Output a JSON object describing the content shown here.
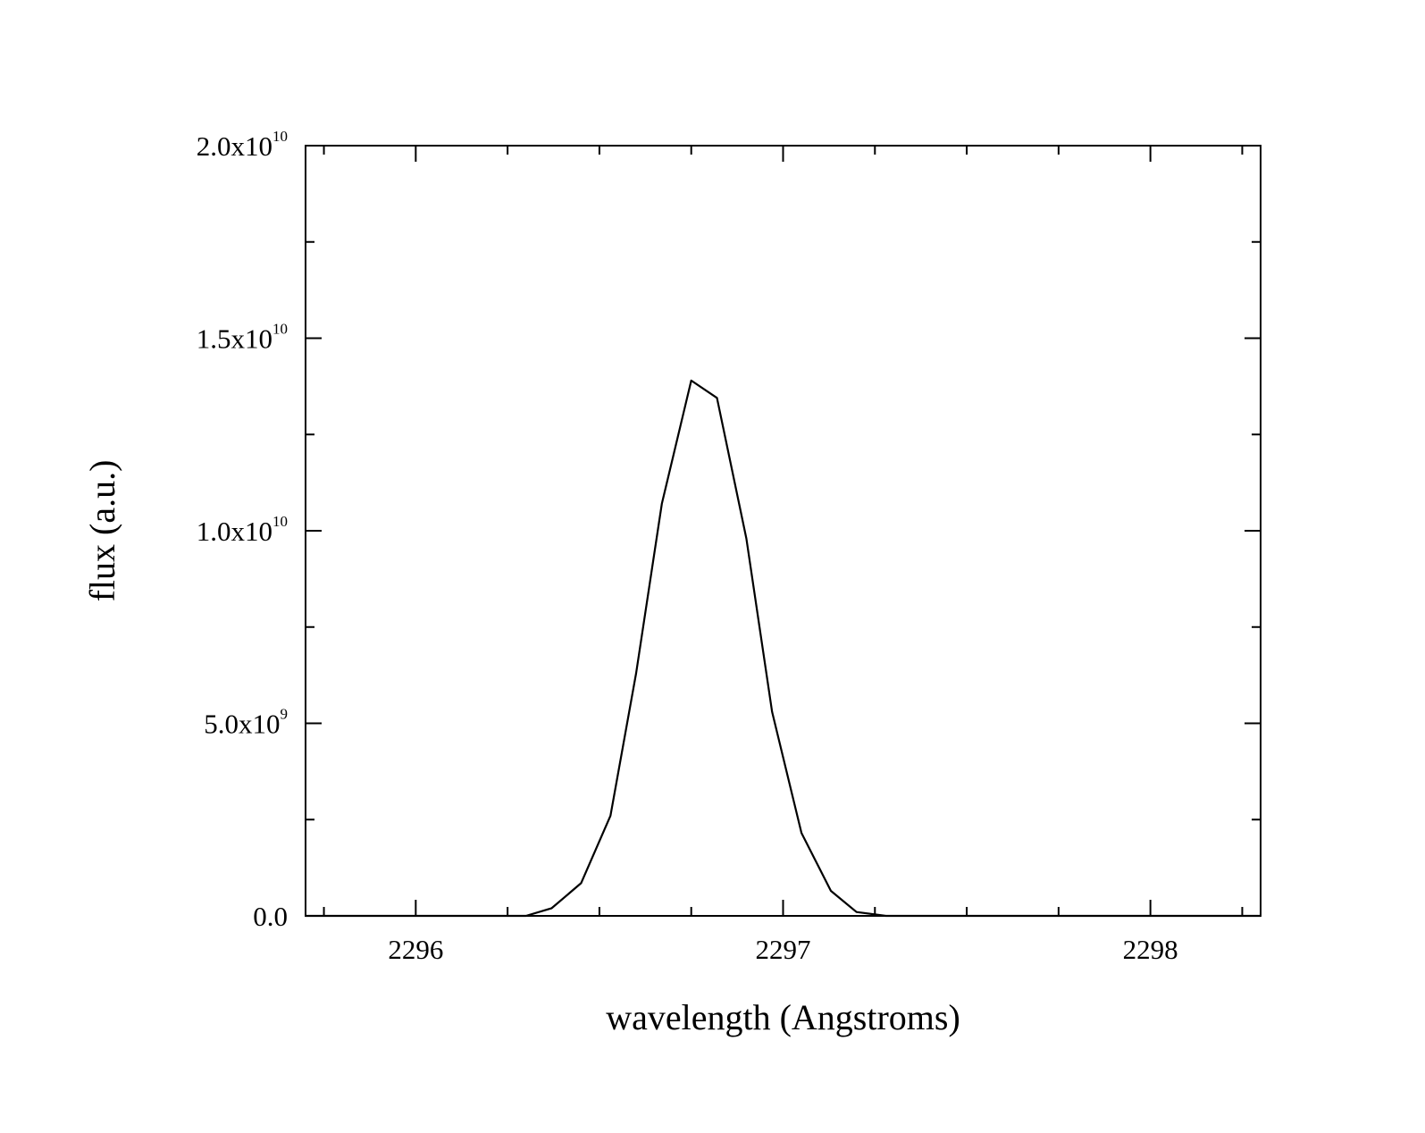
{
  "chart_data": {
    "type": "line",
    "xlabel": "wavelength (Angstroms)",
    "ylabel": "flux (a.u.)",
    "xlim": [
      2295.7,
      2298.3
    ],
    "ylim": [
      0,
      20000000000
    ],
    "grid": false,
    "legend": "none",
    "line_color": "#000000",
    "x_ticks": [
      {
        "value": 2296,
        "label": "2296"
      },
      {
        "value": 2297,
        "label": "2297"
      },
      {
        "value": 2298,
        "label": "2298"
      }
    ],
    "y_ticks": [
      {
        "value": 0,
        "mantissa": "0.0",
        "exp": ""
      },
      {
        "value": 5000000000,
        "mantissa": "5.0x10",
        "exp": "9"
      },
      {
        "value": 10000000000,
        "mantissa": "1.0x10",
        "exp": "10"
      },
      {
        "value": 15000000000,
        "mantissa": "1.5x10",
        "exp": "10"
      },
      {
        "value": 20000000000,
        "mantissa": "2.0x10",
        "exp": "10"
      }
    ],
    "series": [
      {
        "x": [
          2295.7,
          2296.3,
          2296.37,
          2296.45,
          2296.53,
          2296.6,
          2296.67,
          2296.75,
          2296.82,
          2296.9,
          2296.97,
          2297.05,
          2297.13,
          2297.2,
          2297.28,
          2297.35,
          2298.3
        ],
        "y": [
          0,
          0,
          200000000,
          850000000,
          2600000000,
          6300000000,
          10700000000,
          13900000000,
          13450000000,
          9800000000,
          5300000000,
          2150000000,
          650000000,
          100000000,
          0,
          0,
          0
        ]
      }
    ]
  }
}
